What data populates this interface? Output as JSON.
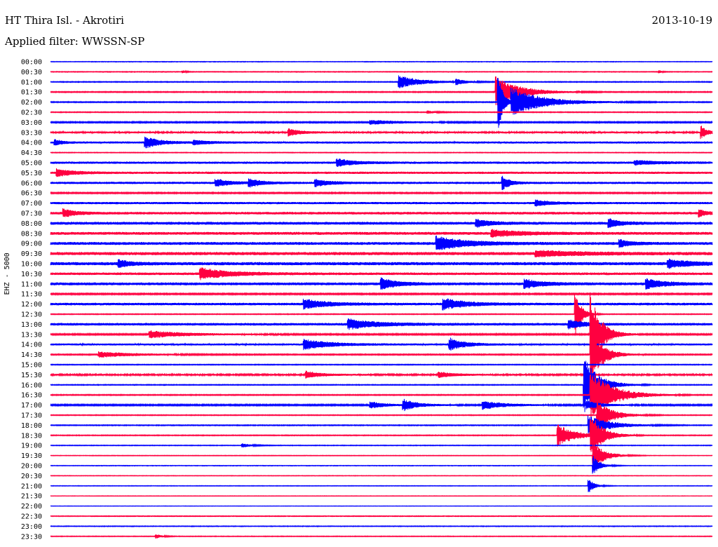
{
  "header": {
    "station": "HT Thira Isl. - Akrotiri",
    "date": "2013-10-19",
    "filter": "Applied filter: WWSSN-SP",
    "channel": "EHZ - 5000"
  },
  "colors": {
    "blue_trace": "#0000ff",
    "red_trace": "#ff0040"
  },
  "chart_data": {
    "type": "helicorder",
    "title": "HT Thira Isl. - Akrotiri",
    "date": "2013-10-19",
    "filter": "WWSSN-SP",
    "ylabel": "EHZ - 5000",
    "row_minutes": 30,
    "minute_range": [
      0,
      30
    ],
    "row_labels": [
      "00:00",
      "00:30",
      "01:00",
      "01:30",
      "02:00",
      "02:30",
      "03:00",
      "03:30",
      "04:00",
      "04:30",
      "05:00",
      "05:30",
      "06:00",
      "06:30",
      "07:00",
      "07:30",
      "08:00",
      "08:30",
      "09:00",
      "09:30",
      "10:00",
      "10:30",
      "11:00",
      "11:30",
      "12:00",
      "12:30",
      "13:00",
      "13:30",
      "14:00",
      "14:30",
      "15:00",
      "15:30",
      "16:00",
      "16:30",
      "17:00",
      "17:30",
      "18:00",
      "18:30",
      "19:00",
      "19:30",
      "20:00",
      "20:30",
      "21:00",
      "21:30",
      "22:00",
      "22:30",
      "23:00",
      "23:30"
    ],
    "trace_colors": [
      "blue",
      "red"
    ],
    "rows": [
      {
        "noise": 0.4,
        "events": []
      },
      {
        "noise": 0.5,
        "events": [
          {
            "t": 6.0,
            "amp": 2,
            "dur": 0.2
          },
          {
            "t": 27.6,
            "amp": 2,
            "dur": 0.2
          }
        ]
      },
      {
        "noise": 0.6,
        "events": [
          {
            "t": 15.8,
            "amp": 9,
            "dur": 1.6
          },
          {
            "t": 18.4,
            "amp": 4,
            "dur": 0.6
          }
        ]
      },
      {
        "noise": 0.7,
        "events": [
          {
            "t": 20.2,
            "amp": 22,
            "dur": 1.6
          }
        ]
      },
      {
        "noise": 0.7,
        "events": [
          {
            "t": 20.3,
            "amp": 46,
            "dur": 0.3
          },
          {
            "t": 20.9,
            "amp": 20,
            "dur": 2.2
          }
        ]
      },
      {
        "noise": 0.6,
        "events": [
          {
            "t": 17.1,
            "amp": 2,
            "dur": 0.6
          }
        ]
      },
      {
        "noise": 0.9,
        "events": [
          {
            "t": 14.5,
            "amp": 3,
            "dur": 2.2
          }
        ]
      },
      {
        "noise": 1.3,
        "events": [
          {
            "t": 10.8,
            "amp": 5,
            "dur": 0.8
          },
          {
            "t": 29.5,
            "amp": 9,
            "dur": 0.4
          }
        ]
      },
      {
        "noise": 1.5,
        "events": [
          {
            "t": 0.2,
            "amp": 4,
            "dur": 0.5
          },
          {
            "t": 4.3,
            "amp": 8,
            "dur": 1.0
          },
          {
            "t": 6.5,
            "amp": 3,
            "dur": 1.0
          }
        ]
      },
      {
        "noise": 0.5,
        "events": []
      },
      {
        "noise": 1.6,
        "events": [
          {
            "t": 13.0,
            "amp": 5,
            "dur": 1.2
          },
          {
            "t": 26.5,
            "amp": 3,
            "dur": 1.5
          }
        ]
      },
      {
        "noise": 1.6,
        "events": [
          {
            "t": 0.3,
            "amp": 5,
            "dur": 1.2
          }
        ]
      },
      {
        "noise": 1.6,
        "events": [
          {
            "t": 7.5,
            "amp": 5,
            "dur": 1.0
          },
          {
            "t": 9.0,
            "amp": 6,
            "dur": 0.8
          },
          {
            "t": 12.0,
            "amp": 5,
            "dur": 1.0
          },
          {
            "t": 20.5,
            "amp": 10,
            "dur": 0.5
          }
        ]
      },
      {
        "noise": 0.9,
        "events": []
      },
      {
        "noise": 1.6,
        "events": [
          {
            "t": 22.0,
            "amp": 4,
            "dur": 1.0
          }
        ]
      },
      {
        "noise": 1.8,
        "events": [
          {
            "t": 0.6,
            "amp": 6,
            "dur": 0.8
          },
          {
            "t": 29.4,
            "amp": 5,
            "dur": 0.5
          }
        ]
      },
      {
        "noise": 2.0,
        "events": [
          {
            "t": 19.3,
            "amp": 5,
            "dur": 1.0
          },
          {
            "t": 25.3,
            "amp": 6,
            "dur": 0.8
          }
        ]
      },
      {
        "noise": 2.0,
        "events": [
          {
            "t": 20.0,
            "amp": 5,
            "dur": 2.0
          }
        ]
      },
      {
        "noise": 2.0,
        "events": [
          {
            "t": 17.5,
            "amp": 10,
            "dur": 2.0
          },
          {
            "t": 25.8,
            "amp": 5,
            "dur": 0.8
          }
        ]
      },
      {
        "noise": 2.2,
        "events": [
          {
            "t": 22.0,
            "amp": 4,
            "dur": 3.0
          }
        ]
      },
      {
        "noise": 2.2,
        "events": [
          {
            "t": 3.1,
            "amp": 5,
            "dur": 0.8
          },
          {
            "t": 28.0,
            "amp": 6,
            "dur": 1.5
          }
        ]
      },
      {
        "noise": 1.8,
        "events": [
          {
            "t": 6.8,
            "amp": 8,
            "dur": 2.0
          }
        ]
      },
      {
        "noise": 2.0,
        "events": [
          {
            "t": 15.0,
            "amp": 8,
            "dur": 1.0
          },
          {
            "t": 21.5,
            "amp": 6,
            "dur": 1.2
          },
          {
            "t": 27.0,
            "amp": 7,
            "dur": 1.2
          }
        ]
      },
      {
        "noise": 1.0,
        "events": []
      },
      {
        "noise": 1.8,
        "events": [
          {
            "t": 11.5,
            "amp": 7,
            "dur": 1.5
          },
          {
            "t": 17.8,
            "amp": 8,
            "dur": 1.5
          }
        ]
      },
      {
        "noise": 0.6,
        "events": [
          {
            "t": 23.8,
            "amp": 32,
            "dur": 0.4
          }
        ]
      },
      {
        "noise": 1.8,
        "events": [
          {
            "t": 13.5,
            "amp": 7,
            "dur": 2.0
          },
          {
            "t": 23.5,
            "amp": 7,
            "dur": 1.0
          }
        ]
      },
      {
        "noise": 1.0,
        "events": [
          {
            "t": 4.5,
            "amp": 5,
            "dur": 2.5
          },
          {
            "t": 24.5,
            "amp": 60,
            "dur": 0.7
          }
        ]
      },
      {
        "noise": 1.4,
        "events": [
          {
            "t": 11.5,
            "amp": 7,
            "dur": 1.8
          },
          {
            "t": 18.1,
            "amp": 9,
            "dur": 1.0
          }
        ]
      },
      {
        "noise": 0.8,
        "events": [
          {
            "t": 2.2,
            "amp": 4,
            "dur": 2.5
          },
          {
            "t": 24.5,
            "amp": 40,
            "dur": 0.8
          }
        ]
      },
      {
        "noise": 0.6,
        "events": []
      },
      {
        "noise": 1.2,
        "events": [
          {
            "t": 11.6,
            "amp": 5,
            "dur": 1.0
          },
          {
            "t": 17.6,
            "amp": 4,
            "dur": 1.0
          }
        ]
      },
      {
        "noise": 0.6,
        "events": [
          {
            "t": 24.2,
            "amp": 40,
            "dur": 1.0
          }
        ]
      },
      {
        "noise": 0.7,
        "events": [
          {
            "t": 24.5,
            "amp": 36,
            "dur": 1.5
          }
        ]
      },
      {
        "noise": 1.0,
        "events": [
          {
            "t": 14.5,
            "amp": 5,
            "dur": 1.0
          },
          {
            "t": 16.0,
            "amp": 8,
            "dur": 1.0
          },
          {
            "t": 19.6,
            "amp": 6,
            "dur": 1.5
          },
          {
            "t": 24.3,
            "amp": 6,
            "dur": 1.0
          }
        ]
      },
      {
        "noise": 0.6,
        "events": [
          {
            "t": 24.8,
            "amp": 22,
            "dur": 1.0
          }
        ]
      },
      {
        "noise": 0.6,
        "events": [
          {
            "t": 24.4,
            "amp": 14,
            "dur": 1.5
          }
        ]
      },
      {
        "noise": 0.6,
        "events": [
          {
            "t": 23.0,
            "amp": 16,
            "dur": 1.2
          },
          {
            "t": 24.5,
            "amp": 30,
            "dur": 0.8
          }
        ]
      },
      {
        "noise": 0.5,
        "events": [
          {
            "t": 8.7,
            "amp": 3,
            "dur": 0.6
          }
        ]
      },
      {
        "noise": 0.4,
        "events": [
          {
            "t": 24.6,
            "amp": 20,
            "dur": 0.8
          }
        ]
      },
      {
        "noise": 0.4,
        "events": [
          {
            "t": 24.6,
            "amp": 14,
            "dur": 0.5
          }
        ]
      },
      {
        "noise": 0.4,
        "events": []
      },
      {
        "noise": 0.4,
        "events": [
          {
            "t": 24.4,
            "amp": 10,
            "dur": 0.4
          }
        ]
      },
      {
        "noise": 0.3,
        "events": []
      },
      {
        "noise": 0.3,
        "events": []
      },
      {
        "noise": 0.5,
        "events": []
      },
      {
        "noise": 0.5,
        "events": []
      },
      {
        "noise": 0.5,
        "events": [
          {
            "t": 4.8,
            "amp": 3,
            "dur": 0.4
          }
        ]
      }
    ]
  }
}
